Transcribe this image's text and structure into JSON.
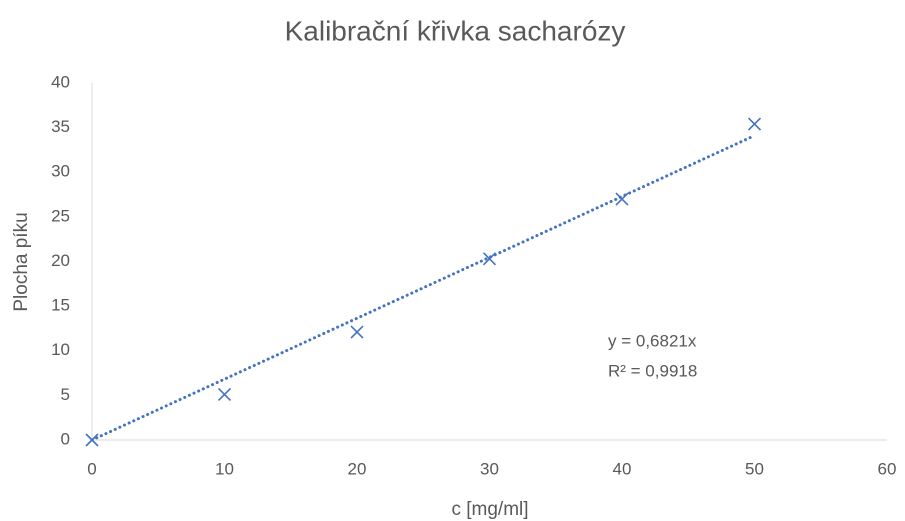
{
  "chart_data": {
    "type": "scatter",
    "title": "Kalibrační křivka sacharózy",
    "x_label": "c [mg/ml]",
    "y_label": "Plocha píku",
    "series": [
      {
        "name": "Plocha píku",
        "color": "#4472c4",
        "x": [
          0,
          10,
          20,
          30,
          40,
          50
        ],
        "values": [
          0,
          5.1,
          12.1,
          20.3,
          27,
          35.4
        ]
      }
    ],
    "trendline": {
      "slope": 0.6821,
      "color": "#4472c4"
    },
    "annotations": [
      "y = 0,6821x",
      "R² = 0,9918"
    ],
    "xlim": [
      0,
      60
    ],
    "xticks": [
      0,
      10,
      20,
      30,
      40,
      50,
      60
    ],
    "ylim": [
      0,
      40
    ],
    "yticks": [
      0,
      5,
      10,
      15,
      20,
      25,
      30,
      35,
      40
    ]
  }
}
